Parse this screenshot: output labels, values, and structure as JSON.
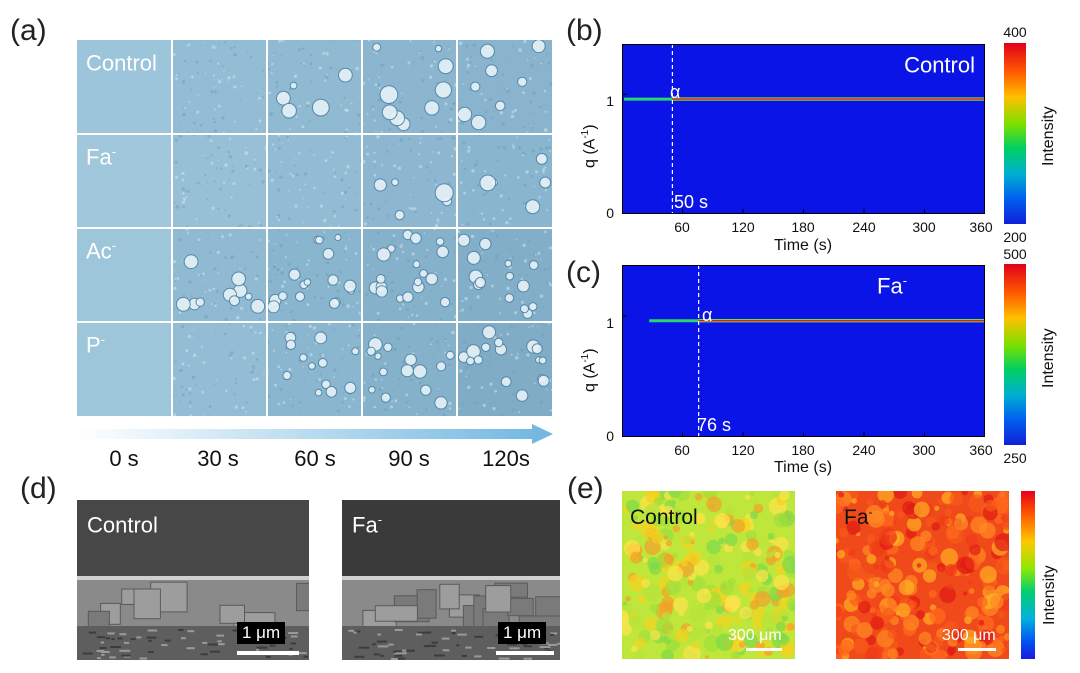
{
  "panel_labels": {
    "a": "(a)",
    "b": "(b)",
    "c": "(c)",
    "d": "(d)",
    "e": "(e)"
  },
  "panel_a": {
    "rows": [
      {
        "label": "Control",
        "sup": ""
      },
      {
        "label": "Fa",
        "sup": "-"
      },
      {
        "label": "Ac",
        "sup": "-"
      },
      {
        "label": "P",
        "sup": "-"
      }
    ],
    "times": [
      "0 s",
      "30 s",
      "60 s",
      "90 s",
      "120s"
    ]
  },
  "chart_data": [
    {
      "type": "heatmap",
      "panel": "b",
      "title": "Control",
      "title_sup": "",
      "xlabel": "Time (s)",
      "ylabel": "q (A",
      "ylabel_sup": "-1",
      "ylabel_close": ")",
      "x_ticks": [
        "60",
        "120",
        "180",
        "240",
        "300",
        "360"
      ],
      "x_tick_values": [
        60,
        120,
        180,
        240,
        300,
        360
      ],
      "y_ticks": [
        "0",
        "1"
      ],
      "y_tick_values": [
        0,
        1
      ],
      "xlim": [
        0,
        360
      ],
      "ylim": [
        0,
        1.42
      ],
      "peak_q": 0.96,
      "peak_start_s": 2,
      "transition_s": 50,
      "transition_label": "50 s",
      "phase_label": "α",
      "colorbar": {
        "max": "400",
        "min": "200",
        "label": "Intensity"
      }
    },
    {
      "type": "heatmap",
      "panel": "c",
      "title": "Fa",
      "title_sup": "-",
      "xlabel": "Time (s)",
      "ylabel": "q (A",
      "ylabel_sup": "-1",
      "ylabel_close": ")",
      "x_ticks": [
        "60",
        "120",
        "180",
        "240",
        "300",
        "360"
      ],
      "x_tick_values": [
        60,
        120,
        180,
        240,
        300,
        360
      ],
      "y_ticks": [
        "0",
        "1"
      ],
      "y_tick_values": [
        0,
        1
      ],
      "xlim": [
        0,
        360
      ],
      "ylim": [
        0,
        1.42
      ],
      "peak_q": 0.96,
      "peak_start_s": 27,
      "transition_s": 76,
      "transition_label": "76 s",
      "phase_label": "α",
      "colorbar": {
        "max": "500",
        "min": "250",
        "label": "Intensity"
      }
    }
  ],
  "panel_d": {
    "left": {
      "title": "Control",
      "sup": "",
      "scale": "1 μm"
    },
    "right": {
      "title": "Fa",
      "sup": "-",
      "scale": "1 μm"
    }
  },
  "panel_e": {
    "left": {
      "title": "Control",
      "sup": "",
      "scale": "300 μm"
    },
    "right": {
      "title": "Fa",
      "sup": "-",
      "scale": "300 μm"
    },
    "colorbar_label": "Intensity"
  },
  "colors": {
    "heatmap_bg": "#0b14e6",
    "micrograph_blue": "#8fb8d2",
    "arrow": "#6fb6e0"
  }
}
